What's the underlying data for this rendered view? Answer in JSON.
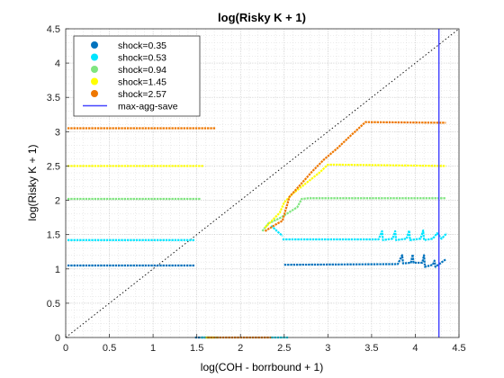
{
  "chart_data": {
    "type": "scatter",
    "title": "log(Risky K + 1)",
    "xlabel": "log(COH - borrbound + 1)",
    "ylabel": "log(Risky K + 1)",
    "xlim": [
      0,
      4.5
    ],
    "ylim": [
      0,
      4.5
    ],
    "x_ticks": [
      "0",
      "0.5",
      "1",
      "1.5",
      "2",
      "2.5",
      "3",
      "3.5",
      "4",
      "4.5"
    ],
    "y_ticks": [
      "0",
      "0.5",
      "1",
      "1.5",
      "2",
      "2.5",
      "3",
      "3.5",
      "4",
      "4.5"
    ],
    "grid": true,
    "minor_grid": true,
    "legend_position": "top-left",
    "series": [
      {
        "name": "shock=0.35",
        "color": "#0072BD",
        "segments": [
          [
            [
              0.02,
              1.05
            ],
            [
              1.48,
              1.05
            ]
          ],
          [
            [
              2.5,
              1.06
            ],
            [
              3.8,
              1.07
            ],
            [
              3.85,
              1.2
            ],
            [
              3.86,
              1.08
            ],
            [
              3.95,
              1.09
            ],
            [
              3.97,
              1.21
            ],
            [
              3.98,
              1.09
            ],
            [
              4.08,
              1.09
            ],
            [
              4.1,
              1.2
            ],
            [
              4.11,
              1.03
            ],
            [
              4.2,
              1.06
            ],
            [
              4.22,
              1.12
            ],
            [
              4.23,
              1.03
            ],
            [
              4.35,
              1.14
            ]
          ],
          [
            [
              1.48,
              0.0
            ],
            [
              1.6,
              0.0
            ]
          ]
        ]
      },
      {
        "name": "shock=0.53",
        "color": "#00E5FF",
        "segments": [
          [
            [
              0.02,
              1.42
            ],
            [
              1.48,
              1.42
            ]
          ],
          [
            [
              2.48,
              1.43
            ],
            [
              3.58,
              1.43
            ],
            [
              3.62,
              1.55
            ],
            [
              3.63,
              1.42
            ],
            [
              3.74,
              1.44
            ],
            [
              3.77,
              1.55
            ],
            [
              3.78,
              1.42
            ],
            [
              3.9,
              1.44
            ],
            [
              3.93,
              1.56
            ],
            [
              3.94,
              1.42
            ],
            [
              4.06,
              1.44
            ],
            [
              4.09,
              1.56
            ],
            [
              4.1,
              1.42
            ],
            [
              4.2,
              1.44
            ],
            [
              4.25,
              1.52
            ],
            [
              4.3,
              1.44
            ],
            [
              4.36,
              1.52
            ]
          ],
          [
            [
              2.35,
              1.63
            ],
            [
              2.48,
              1.48
            ]
          ],
          [
            [
              1.55,
              0.0
            ],
            [
              1.65,
              0.0
            ]
          ],
          [
            [
              2.35,
              0.0
            ],
            [
              2.55,
              0.0
            ]
          ]
        ]
      },
      {
        "name": "shock=0.94",
        "color": "#7FE57F",
        "segments": [
          [
            [
              0.02,
              2.02
            ],
            [
              1.55,
              2.02
            ]
          ],
          [
            [
              2.35,
              1.68
            ],
            [
              2.45,
              1.74
            ],
            [
              2.55,
              1.82
            ],
            [
              2.65,
              1.9
            ],
            [
              2.7,
              2.02
            ],
            [
              2.78,
              2.03
            ],
            [
              4.35,
              2.03
            ]
          ],
          [
            [
              2.25,
              1.55
            ],
            [
              2.33,
              1.68
            ]
          ],
          [
            [
              1.6,
              0.0
            ],
            [
              1.75,
              0.0
            ]
          ]
        ]
      },
      {
        "name": "shock=1.45",
        "color": "#FFFF00",
        "segments": [
          [
            [
              0.02,
              2.5
            ],
            [
              1.58,
              2.5
            ]
          ],
          [
            [
              2.28,
              1.6
            ],
            [
              2.45,
              1.82
            ],
            [
              2.5,
              1.97
            ],
            [
              2.6,
              2.1
            ],
            [
              2.75,
              2.25
            ],
            [
              2.9,
              2.4
            ],
            [
              3.0,
              2.52
            ],
            [
              3.08,
              2.52
            ],
            [
              4.35,
              2.5
            ]
          ],
          [
            [
              1.6,
              0.0
            ],
            [
              1.7,
              0.0
            ]
          ]
        ]
      },
      {
        "name": "shock=2.57",
        "color": "#EE7700",
        "segments": [
          [
            [
              0.02,
              3.05
            ],
            [
              1.72,
              3.05
            ]
          ],
          [
            [
              2.28,
              1.55
            ],
            [
              2.42,
              1.66
            ],
            [
              2.48,
              1.7
            ],
            [
              2.56,
              2.05
            ],
            [
              2.68,
              2.22
            ],
            [
              2.82,
              2.42
            ],
            [
              2.96,
              2.6
            ],
            [
              3.1,
              2.75
            ],
            [
              3.25,
              2.93
            ],
            [
              3.43,
              3.14
            ],
            [
              4.35,
              3.13
            ]
          ],
          [
            [
              1.62,
              0.0
            ],
            [
              2.35,
              0.0
            ]
          ]
        ]
      },
      {
        "name": "max-agg-save",
        "color": "#4444FF",
        "vertical_line_x": 4.27
      }
    ],
    "reference_line": {
      "type": "diagonal",
      "from": [
        0,
        0
      ],
      "to": [
        4.5,
        4.5
      ],
      "style": "dotted"
    }
  }
}
